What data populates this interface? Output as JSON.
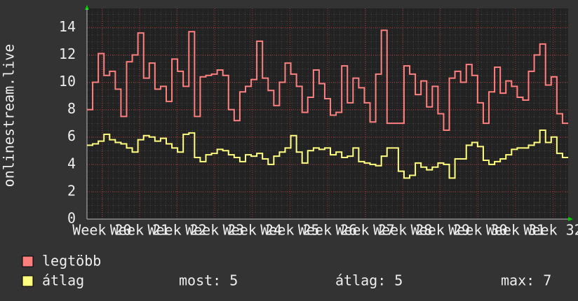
{
  "chart_data": {
    "type": "step-line",
    "y_label": "onlinestream.live",
    "ylim": [
      0,
      15.4
    ],
    "yticks": [
      0,
      2,
      4,
      6,
      8,
      10,
      12,
      14
    ],
    "xlim": [
      19.6,
      32.4
    ],
    "xticks": [
      {
        "value": 20,
        "label": "Week 20"
      },
      {
        "value": 21,
        "label": "Week 21"
      },
      {
        "value": 22,
        "label": "Week 22"
      },
      {
        "value": 23,
        "label": "Week 23"
      },
      {
        "value": 24,
        "label": "Week 24"
      },
      {
        "value": 25,
        "label": "Week 25"
      },
      {
        "value": 26,
        "label": "Week 26"
      },
      {
        "value": 27,
        "label": "Week 27"
      },
      {
        "value": 28,
        "label": "Week 28"
      },
      {
        "value": 29,
        "label": "Week 29"
      },
      {
        "value": 30,
        "label": "Week 30"
      },
      {
        "value": 31,
        "label": "Week 31"
      },
      {
        "value": 32,
        "label": "Week 32"
      }
    ],
    "grid": true,
    "series": [
      {
        "name": "legtöbb",
        "color": "#ff7f7f",
        "values": [
          8,
          10,
          12.1,
          10.5,
          10.8,
          9.5,
          7.5,
          11.5,
          12,
          13.6,
          10.3,
          11.4,
          9.5,
          9.7,
          8.6,
          11.7,
          10.8,
          9.7,
          13.7,
          7.5,
          10.4,
          10.5,
          10.6,
          10.9,
          10.5,
          8,
          7.2,
          9.3,
          9.7,
          10.2,
          13,
          10.3,
          9.4,
          8.3,
          10,
          11.4,
          10.6,
          9.7,
          7.8,
          8.9,
          10.9,
          9.9,
          8.8,
          7.6,
          7.8,
          11.2,
          8.5,
          10.3,
          9.6,
          8.5,
          7.1,
          10.6,
          13.8,
          7,
          7,
          7,
          11.2,
          10.6,
          9.1,
          10.1,
          8.2,
          9.7,
          7.7,
          6.5,
          10.3,
          10.8,
          10,
          11.3,
          10.5,
          8.5,
          7,
          9.3,
          11.1,
          9.2,
          10.1,
          9.7,
          8.9,
          8.7,
          10.8,
          12,
          12.8,
          9.8,
          10.4,
          7.7,
          7.0
        ]
      },
      {
        "name": "átlag",
        "color": "#ffff80",
        "values": [
          5.4,
          5.5,
          5.7,
          6.2,
          5.8,
          5.6,
          5.5,
          5.2,
          4.9,
          5.8,
          6.1,
          6,
          5.7,
          5.9,
          5.5,
          5.2,
          4.9,
          6.2,
          6.3,
          4.5,
          4.2,
          4.7,
          4.8,
          5.1,
          5,
          4.7,
          4.5,
          4.2,
          4.7,
          4.6,
          4.8,
          4.4,
          4,
          4.6,
          4.9,
          5.2,
          6.1,
          4.9,
          4.1,
          5,
          5.2,
          5.1,
          5.2,
          4.7,
          4.9,
          4.5,
          4.6,
          5.2,
          4.2,
          4.1,
          4,
          3.9,
          4.6,
          5.2,
          5.2,
          3.5,
          3,
          3.2,
          4.1,
          3.8,
          3.6,
          3.8,
          4.1,
          4,
          3,
          4.4,
          4.4,
          5.4,
          5.6,
          5.3,
          4.3,
          4,
          4.2,
          4.4,
          4.7,
          5.1,
          5.2,
          5.2,
          5.4,
          5.6,
          6.5,
          5.6,
          6,
          4.8,
          4.5
        ]
      }
    ],
    "stats": [
      "most: 5",
      "átlag: 5",
      "max: 7"
    ]
  }
}
